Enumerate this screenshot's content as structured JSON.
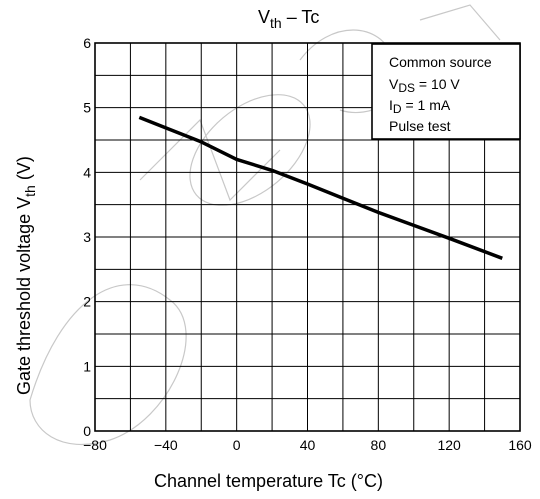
{
  "chart_data": {
    "type": "line",
    "title": "Vth – Tc",
    "title_main": "V",
    "title_sub": "th",
    "title_rest": " – Tc",
    "xlabel": "Channel temperature   Tc   (°C)",
    "ylabel_main": "Gate threshold voltage   V",
    "ylabel_sub": "th",
    "ylabel_unit": "  (V)",
    "xlim": [
      -80,
      160
    ],
    "ylim": [
      0,
      6
    ],
    "xticks": [
      -80,
      -40,
      0,
      40,
      80,
      120,
      160
    ],
    "yticks": [
      0,
      1,
      2,
      3,
      4,
      5,
      6
    ],
    "x_minor_step": 20,
    "y_minor_step": 0.5,
    "grid": true,
    "series": [
      {
        "x": [
          -55,
          -20,
          0,
          20,
          40,
          60,
          80,
          100,
          120,
          150
        ],
        "y": [
          4.85,
          4.47,
          4.2,
          4.03,
          3.82,
          3.6,
          3.38,
          3.18,
          2.98,
          2.67
        ]
      }
    ],
    "annotation": {
      "line1": "Common source",
      "line2_main": "V",
      "line2_sub": "DS",
      "line2_rest": " = 10 V",
      "line3_main": "I",
      "line3_sub": "D",
      "line3_rest": " = 1 mA",
      "line4": "Pulse test"
    },
    "colors": {
      "line": "#000000",
      "grid": "#000000",
      "watermark": "#c8c8c8"
    }
  }
}
